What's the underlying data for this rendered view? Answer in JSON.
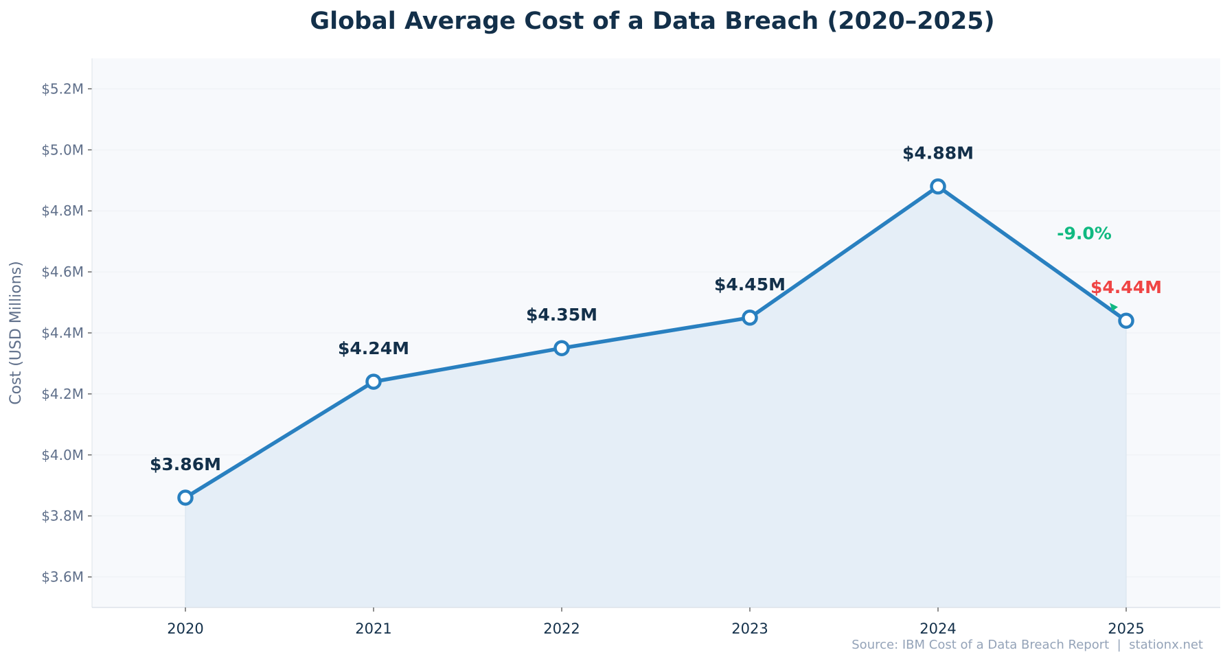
{
  "chart_data": {
    "type": "line",
    "title": "Global Average Cost of a Data Breach (2020–2025)",
    "xlabel": "",
    "ylabel": "Cost (USD Millions)",
    "categories": [
      "2020",
      "2021",
      "2022",
      "2023",
      "2024",
      "2025"
    ],
    "values": [
      3.86,
      4.24,
      4.35,
      4.45,
      4.88,
      4.44
    ],
    "data_labels": [
      "$3.86M",
      "$4.24M",
      "$4.35M",
      "$4.45M",
      "$4.88M",
      "$4.44M"
    ],
    "ylim": [
      3.5,
      5.3
    ],
    "yticks": [
      3.6,
      3.8,
      4.0,
      4.2,
      4.4,
      4.6,
      4.8,
      5.0,
      5.2
    ],
    "ytick_labels": [
      "$3.6M",
      "$3.8M",
      "$4.0M",
      "$4.2M",
      "$4.4M",
      "$4.6M",
      "$4.8M",
      "$5.0M",
      "$5.2M"
    ],
    "grid": true,
    "area_fill": true,
    "annotation": {
      "text": "-9.0%",
      "from": "2024",
      "to": "2025",
      "color": "#10b981"
    },
    "colors": {
      "line": "#2980c0",
      "fill": "#e5eef7",
      "background": "#f7f9fc",
      "highlight_label": "#ef4444",
      "label": "#13304a"
    },
    "source": "Source: IBM Cost of a Data Breach Report  |  stationx.net"
  }
}
